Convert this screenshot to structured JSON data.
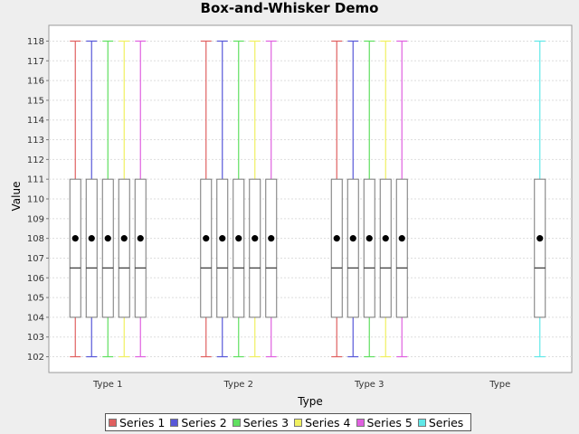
{
  "chart_data": {
    "type": "boxplot",
    "title": "Box-and-Whisker Demo",
    "xlabel": "Type",
    "ylabel": "Value",
    "ylim": [
      101.2,
      118.8
    ],
    "yticks": [
      102,
      103,
      104,
      105,
      106,
      107,
      108,
      109,
      110,
      111,
      112,
      113,
      114,
      115,
      116,
      117,
      118
    ],
    "grid": true,
    "legend_position": "bottom",
    "categories": [
      "Type 1",
      "Type 2",
      "Type 3",
      "Type"
    ],
    "series": [
      {
        "name": "Series 1",
        "color": "#e06060",
        "present": [
          true,
          true,
          true,
          false
        ]
      },
      {
        "name": "Series 2",
        "color": "#5858d8",
        "present": [
          true,
          true,
          true,
          false
        ]
      },
      {
        "name": "Series 3",
        "color": "#60e060",
        "present": [
          true,
          true,
          true,
          false
        ]
      },
      {
        "name": "Series 4",
        "color": "#f0f060",
        "present": [
          true,
          true,
          true,
          false
        ]
      },
      {
        "name": "Series 5",
        "color": "#e060e0",
        "present": [
          true,
          true,
          true,
          false
        ]
      },
      {
        "name": "Series",
        "color": "#60e8e8",
        "present": [
          false,
          false,
          false,
          true
        ]
      }
    ],
    "box_stats": {
      "min": 102,
      "q1": 104,
      "median": 106.5,
      "q3": 111,
      "max": 118,
      "mean": 108
    }
  }
}
